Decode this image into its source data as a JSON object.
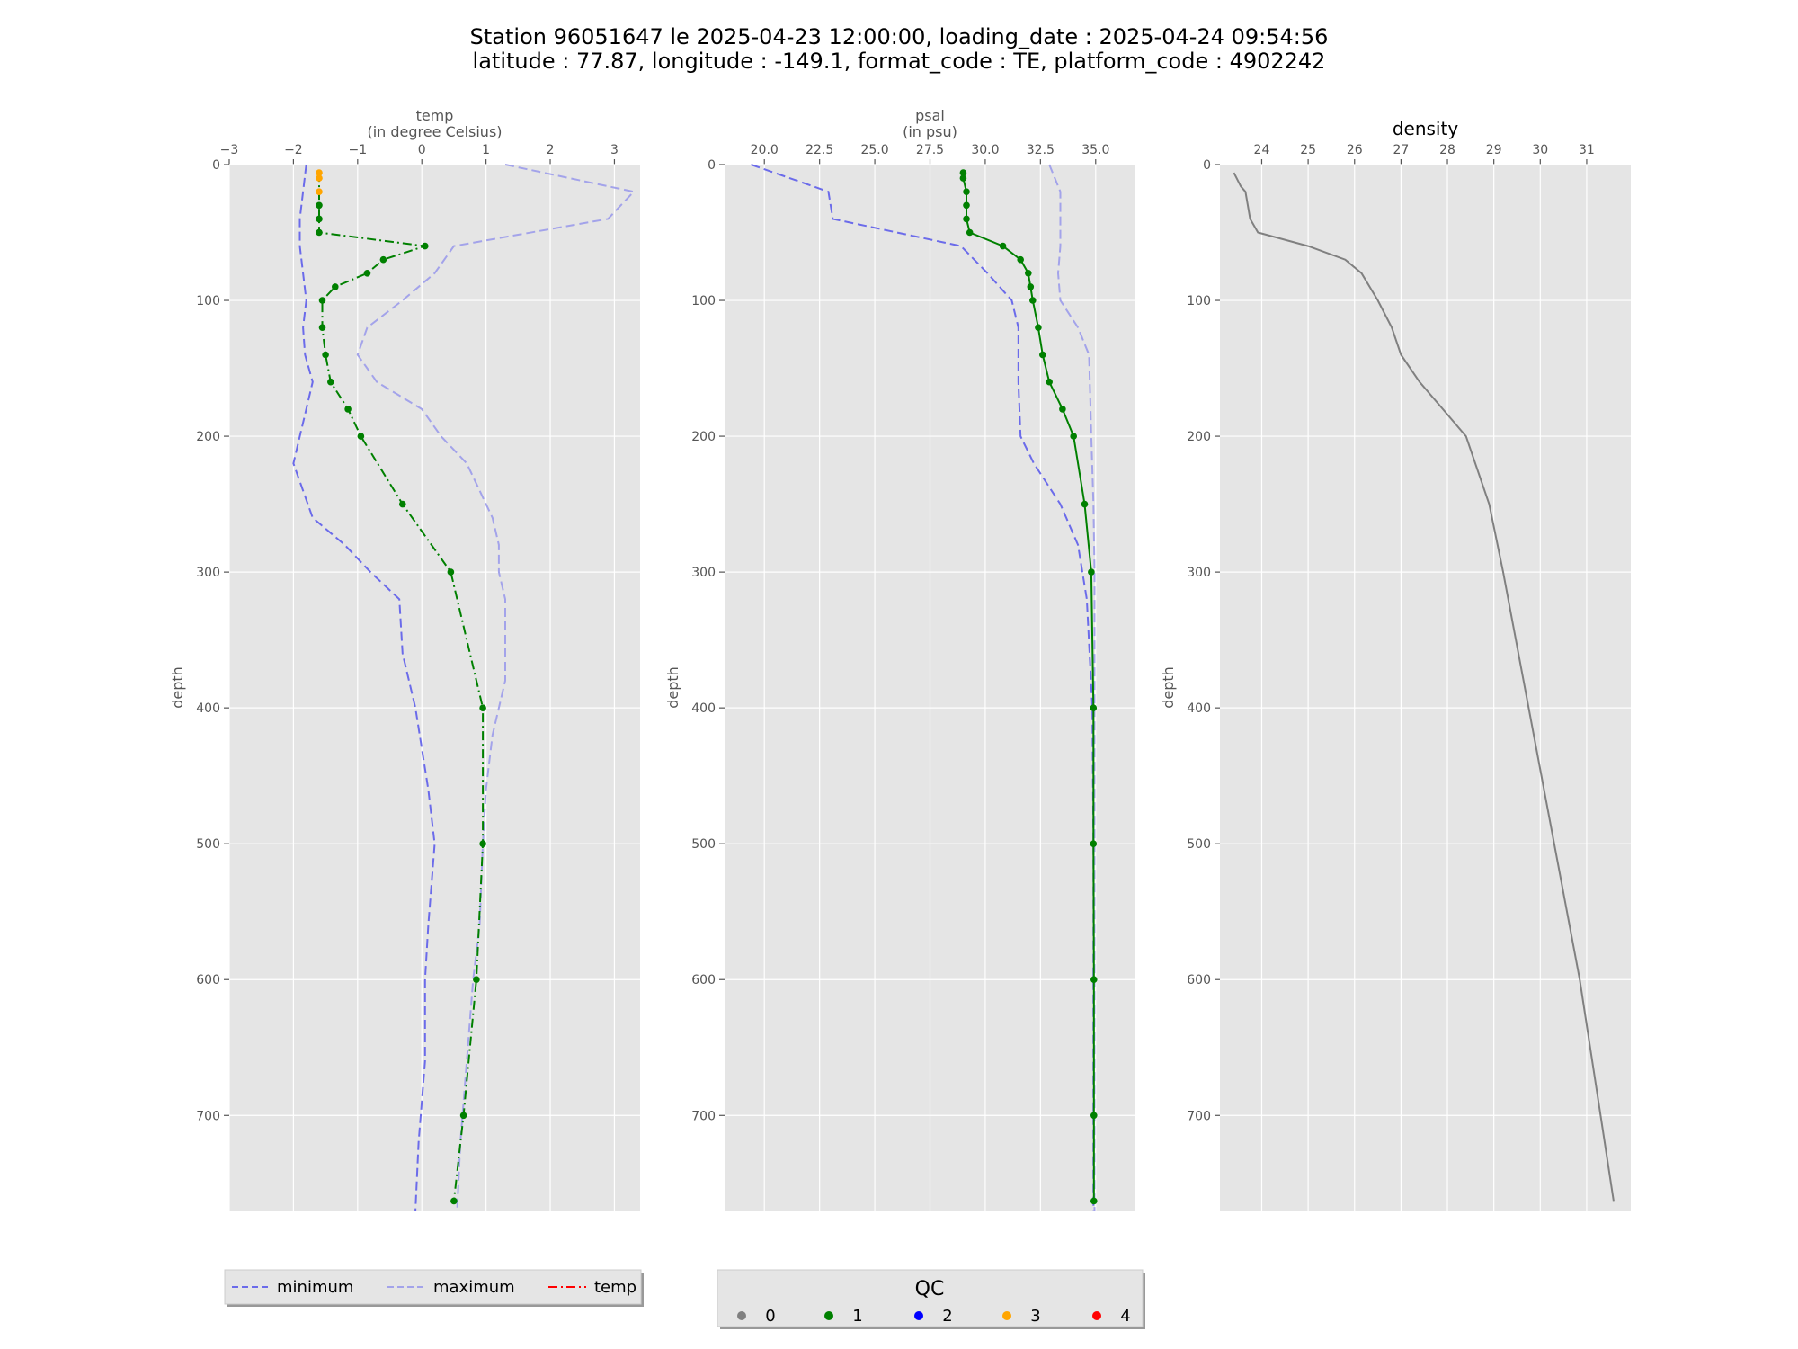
{
  "title": {
    "line1": "Station 96051647 le 2025-04-23 12:00:00, loading_date : 2025-04-24 09:54:56",
    "line2": "latitude : 77.87, longitude : -149.1, format_code : TE, platform_code : 4902242"
  },
  "colors": {
    "panel_bg": "#e5e5e5",
    "grid": "#ffffff",
    "minimum": "#6b6bea",
    "maximum": "#a3a3ea",
    "profile": "#008000",
    "density": "#808080",
    "qc0": "#808080",
    "qc1": "#008000",
    "qc2": "#0000ff",
    "qc3": "#ffa500",
    "qc4": "#ff0000",
    "temp_legend": "#ff0000"
  },
  "legend_left": {
    "items": [
      {
        "label": "minimum",
        "style": "dashed",
        "color_key": "minimum"
      },
      {
        "label": "maximum",
        "style": "dashed",
        "color_key": "maximum"
      },
      {
        "label": "temp",
        "style": "dashdot",
        "color_key": "temp_legend"
      }
    ]
  },
  "legend_qc": {
    "title": "QC",
    "items": [
      {
        "label": "0",
        "color_key": "qc0"
      },
      {
        "label": "1",
        "color_key": "qc1"
      },
      {
        "label": "2",
        "color_key": "qc2"
      },
      {
        "label": "3",
        "color_key": "qc3"
      },
      {
        "label": "4",
        "color_key": "qc4"
      }
    ]
  },
  "chart_data": [
    {
      "type": "line",
      "title": "temp\n(in degree Celsius)",
      "xlabel_top": "temp",
      "xlabel_unit": "(in degree Celsius)",
      "ylabel": "depth",
      "xlim": [
        -3,
        3.4
      ],
      "ylim": [
        770,
        0
      ],
      "y_inverted": true,
      "xticks": [
        -3,
        -2,
        -1,
        0,
        1,
        2,
        3
      ],
      "xtick_labels": [
        "−3",
        "−2",
        "−1",
        "0",
        "1",
        "2",
        "3"
      ],
      "yticks": [
        0,
        100,
        200,
        300,
        400,
        500,
        600,
        700
      ],
      "grid": true,
      "series": [
        {
          "name": "minimum",
          "style": "dashed",
          "color_key": "minimum",
          "points": [
            [
              -1.8,
              0
            ],
            [
              -1.85,
              20
            ],
            [
              -1.9,
              40
            ],
            [
              -1.9,
              60
            ],
            [
              -1.85,
              80
            ],
            [
              -1.8,
              100
            ],
            [
              -1.85,
              120
            ],
            [
              -1.82,
              140
            ],
            [
              -1.7,
              160
            ],
            [
              -1.8,
              180
            ],
            [
              -1.9,
              200
            ],
            [
              -2.0,
              220
            ],
            [
              -1.7,
              260
            ],
            [
              -1.2,
              280
            ],
            [
              -0.8,
              300
            ],
            [
              -0.35,
              320
            ],
            [
              -0.3,
              360
            ],
            [
              -0.1,
              400
            ],
            [
              0.1,
              460
            ],
            [
              0.2,
              500
            ],
            [
              0.1,
              560
            ],
            [
              0.05,
              600
            ],
            [
              0.05,
              660
            ],
            [
              -0.05,
              720
            ],
            [
              -0.1,
              770
            ]
          ]
        },
        {
          "name": "maximum",
          "style": "dashed",
          "color_key": "maximum",
          "points": [
            [
              1.3,
              0
            ],
            [
              3.3,
              20
            ],
            [
              2.9,
              40
            ],
            [
              0.5,
              60
            ],
            [
              0.2,
              80
            ],
            [
              -0.3,
              100
            ],
            [
              -0.85,
              120
            ],
            [
              -1.0,
              140
            ],
            [
              -0.7,
              160
            ],
            [
              0.0,
              180
            ],
            [
              0.3,
              200
            ],
            [
              0.7,
              220
            ],
            [
              1.1,
              260
            ],
            [
              1.2,
              280
            ],
            [
              1.2,
              300
            ],
            [
              1.3,
              320
            ],
            [
              1.3,
              380
            ],
            [
              1.1,
              420
            ],
            [
              1.0,
              460
            ],
            [
              0.95,
              500
            ],
            [
              0.9,
              560
            ],
            [
              0.8,
              600
            ],
            [
              0.7,
              660
            ],
            [
              0.6,
              720
            ],
            [
              0.55,
              770
            ]
          ]
        },
        {
          "name": "temp",
          "style": "dashdot",
          "color_key": "profile",
          "points": [
            [
              -1.6,
              6
            ],
            [
              -1.6,
              10
            ],
            [
              -1.6,
              20
            ],
            [
              -1.6,
              30
            ],
            [
              -1.6,
              40
            ],
            [
              -1.6,
              50
            ],
            [
              0.05,
              60
            ],
            [
              -0.6,
              70
            ],
            [
              -0.85,
              80
            ],
            [
              -1.35,
              90
            ],
            [
              -1.55,
              100
            ],
            [
              -1.55,
              120
            ],
            [
              -1.5,
              140
            ],
            [
              -1.42,
              160
            ],
            [
              -1.15,
              180
            ],
            [
              -0.95,
              200
            ],
            [
              -0.3,
              250
            ],
            [
              0.45,
              300
            ],
            [
              0.95,
              400
            ],
            [
              0.95,
              500
            ],
            [
              0.85,
              600
            ],
            [
              0.65,
              700
            ],
            [
              0.5,
              763
            ]
          ],
          "qc": [
            3,
            3,
            3,
            1,
            1,
            1,
            1,
            1,
            1,
            1,
            1,
            1,
            1,
            1,
            1,
            1,
            1,
            1,
            1,
            1,
            1,
            1,
            1
          ]
        }
      ]
    },
    {
      "type": "line",
      "title": "psal\n(in psu)",
      "xlabel_top": "psal",
      "xlabel_unit": "(in psu)",
      "ylabel": "depth",
      "xlim": [
        18.2,
        36.8
      ],
      "ylim": [
        770,
        0
      ],
      "y_inverted": true,
      "xticks": [
        20.0,
        22.5,
        25.0,
        27.5,
        30.0,
        32.5,
        35.0
      ],
      "xtick_labels": [
        "20.0",
        "22.5",
        "25.0",
        "27.5",
        "30.0",
        "32.5",
        "35.0"
      ],
      "yticks": [
        0,
        100,
        200,
        300,
        400,
        500,
        600,
        700
      ],
      "grid": true,
      "series": [
        {
          "name": "minimum",
          "style": "dashed",
          "color_key": "minimum",
          "points": [
            [
              19.4,
              0
            ],
            [
              22.9,
              20
            ],
            [
              23.1,
              40
            ],
            [
              28.9,
              60
            ],
            [
              30.1,
              80
            ],
            [
              31.2,
              100
            ],
            [
              31.5,
              120
            ],
            [
              31.5,
              160
            ],
            [
              31.6,
              200
            ],
            [
              32.2,
              220
            ],
            [
              33.4,
              250
            ],
            [
              34.2,
              280
            ],
            [
              34.6,
              320
            ],
            [
              34.85,
              400
            ],
            [
              34.9,
              500
            ],
            [
              34.9,
              770
            ]
          ]
        },
        {
          "name": "maximum",
          "style": "dashed",
          "color_key": "maximum",
          "points": [
            [
              32.9,
              0
            ],
            [
              33.4,
              20
            ],
            [
              33.4,
              60
            ],
            [
              33.3,
              80
            ],
            [
              33.4,
              100
            ],
            [
              34.2,
              120
            ],
            [
              34.7,
              140
            ],
            [
              34.8,
              200
            ],
            [
              34.9,
              250
            ],
            [
              34.95,
              300
            ],
            [
              34.95,
              770
            ]
          ]
        },
        {
          "name": "psal",
          "style": "solid",
          "color_key": "profile",
          "points": [
            [
              29.0,
              6
            ],
            [
              29.0,
              10
            ],
            [
              29.15,
              20
            ],
            [
              29.15,
              30
            ],
            [
              29.15,
              40
            ],
            [
              29.3,
              50
            ],
            [
              30.8,
              60
            ],
            [
              31.6,
              70
            ],
            [
              31.95,
              80
            ],
            [
              32.05,
              90
            ],
            [
              32.15,
              100
            ],
            [
              32.4,
              120
            ],
            [
              32.6,
              140
            ],
            [
              32.9,
              160
            ],
            [
              33.5,
              180
            ],
            [
              34.0,
              200
            ],
            [
              34.5,
              250
            ],
            [
              34.8,
              300
            ],
            [
              34.9,
              400
            ],
            [
              34.9,
              500
            ],
            [
              34.92,
              600
            ],
            [
              34.92,
              700
            ],
            [
              34.92,
              763
            ]
          ],
          "qc": [
            1,
            1,
            1,
            1,
            1,
            1,
            1,
            1,
            1,
            1,
            1,
            1,
            1,
            1,
            1,
            1,
            1,
            1,
            1,
            1,
            1,
            1,
            1
          ]
        }
      ]
    },
    {
      "type": "line",
      "title": "density",
      "xlabel_top": "density",
      "xlabel_unit": "",
      "ylabel": "depth",
      "xlim": [
        23.1,
        31.95
      ],
      "ylim": [
        770,
        0
      ],
      "y_inverted": true,
      "xticks": [
        24,
        25,
        26,
        27,
        28,
        29,
        30,
        31
      ],
      "xtick_labels": [
        "24",
        "25",
        "26",
        "27",
        "28",
        "29",
        "30",
        "31"
      ],
      "yticks": [
        0,
        100,
        200,
        300,
        400,
        500,
        600,
        700
      ],
      "grid": true,
      "series": [
        {
          "name": "density",
          "style": "solid",
          "color_key": "density",
          "points": [
            [
              23.4,
              6
            ],
            [
              23.55,
              16
            ],
            [
              23.65,
              20
            ],
            [
              23.7,
              30
            ],
            [
              23.75,
              40
            ],
            [
              23.92,
              50
            ],
            [
              25.0,
              60
            ],
            [
              25.8,
              70
            ],
            [
              26.15,
              80
            ],
            [
              26.5,
              100
            ],
            [
              26.8,
              120
            ],
            [
              27.0,
              140
            ],
            [
              27.4,
              160
            ],
            [
              27.9,
              180
            ],
            [
              28.4,
              200
            ],
            [
              28.9,
              250
            ],
            [
              29.2,
              300
            ],
            [
              29.75,
              400
            ],
            [
              30.3,
              500
            ],
            [
              30.85,
              600
            ],
            [
              31.3,
              700
            ],
            [
              31.58,
              763
            ]
          ]
        }
      ]
    }
  ]
}
